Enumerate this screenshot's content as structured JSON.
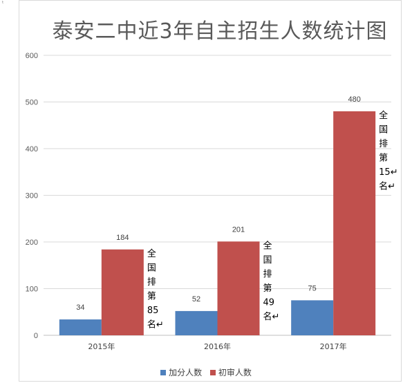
{
  "page": {
    "corner_mark": "ᵗ"
  },
  "chart_data": {
    "type": "bar",
    "title": "泰安二中近3年自主招生人数统计图",
    "xlabel": "",
    "ylabel": "",
    "ylim": [
      0,
      600
    ],
    "yticks": [
      0,
      100,
      200,
      300,
      400,
      500,
      600
    ],
    "grid": true,
    "legend_position": "bottom",
    "categories": [
      "2015年",
      "2016年",
      "2017年"
    ],
    "series": [
      {
        "name": "加分人数",
        "color": "#4f81bd",
        "values": [
          34,
          52,
          75
        ]
      },
      {
        "name": "初审人数",
        "color": "#c0504d",
        "values": [
          184,
          201,
          480
        ]
      }
    ],
    "annotations": [
      {
        "category": "2015年",
        "lines": [
          "全",
          "国",
          "排",
          "第",
          "85",
          "名↵"
        ]
      },
      {
        "category": "2016年",
        "lines": [
          "全",
          "国",
          "排",
          "第",
          "49",
          "名↵"
        ]
      },
      {
        "category": "2017年",
        "lines": [
          "全",
          "国",
          "排",
          "第",
          "15↵",
          "名↵"
        ]
      }
    ]
  }
}
